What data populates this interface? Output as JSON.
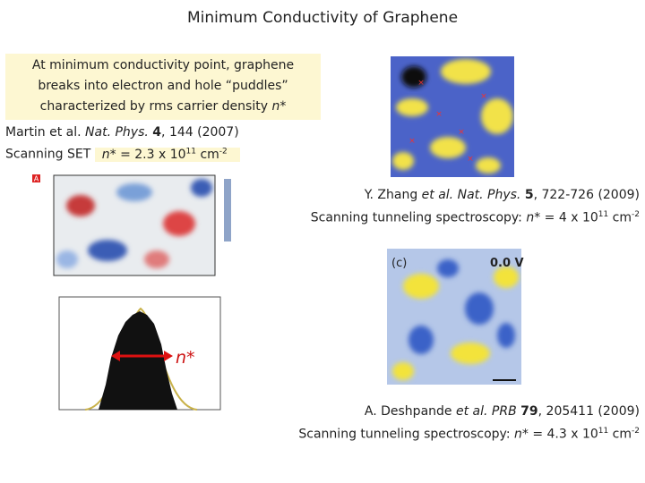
{
  "title": "Minimum Conductivity of Graphene",
  "callout": {
    "lines": [
      "At minimum conductivity point, graphene",
      "breaks into electron and hole “puddles”",
      "characterized by rms carrier density"
    ],
    "symbol": "n*"
  },
  "martin": {
    "authors": "Martin et al.",
    "journal": "Nat. Phys.",
    "volume": "4",
    "rest": ", 144 (2007)",
    "method": "Scanning SET",
    "density": {
      "symbol": "n*",
      "mantissa": "= 2.3 x 10",
      "exponent": "11",
      "unit": "cm",
      "unit_exponent": "-2"
    },
    "panel_label": "A",
    "histogram_label": "n*"
  },
  "zhang": {
    "authors": "Y. Zhang",
    "etal": "et al.",
    "journal": "Nat. Phys.",
    "volume": "5",
    "rest": ", 722-726 (2009)",
    "method": "Scanning tunneling spectroscopy:",
    "density": {
      "symbol": "n*",
      "mantissa": "= 4 x 10",
      "exponent": "11",
      "unit": "cm",
      "unit_exponent": "-2"
    }
  },
  "deshpande": {
    "authors": "A. Deshpande",
    "etal": "et al.",
    "journal": "PRB",
    "volume": "79",
    "rest": ", 205411 (2009)",
    "method": "Scanning tunneling spectroscopy:",
    "density": {
      "symbol": "n*",
      "mantissa": "= 4.3 x 10",
      "exponent": "11",
      "unit": "cm",
      "unit_exponent": "-2"
    },
    "panel_label": "(c)",
    "bias": "0.0 V"
  }
}
